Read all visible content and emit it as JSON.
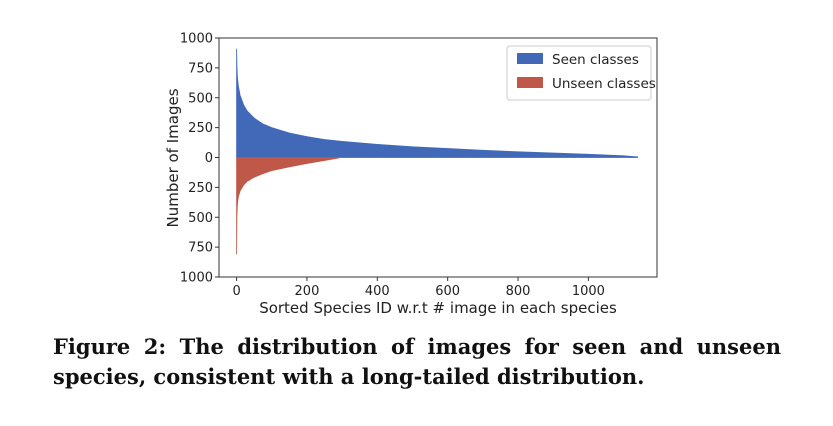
{
  "caption": {
    "text": "Figure 2: The distribution of images for seen and unseen species, consistent with a long-tailed distribution."
  },
  "chart_data": {
    "type": "bar",
    "title": "",
    "xlabel": "Sorted Species ID w.r.t # image in each species",
    "ylabel": "Number of Images",
    "xlim": [
      -50,
      1195
    ],
    "ylim": [
      -1000,
      1000
    ],
    "xticks": [
      0,
      200,
      400,
      600,
      800,
      1000
    ],
    "yticks": [
      1000,
      750,
      500,
      250,
      0,
      -250,
      -500,
      -750,
      -1000
    ],
    "ytick_labels": [
      "1000",
      "750",
      "500",
      "250",
      "0",
      "250",
      "500",
      "750",
      "1000"
    ],
    "legend_position": "top-right",
    "series": [
      {
        "name": "Seen classes",
        "color": "#4169b8",
        "direction": "up",
        "x": [
          0,
          1,
          2,
          3,
          5,
          10,
          20,
          30,
          50,
          75,
          100,
          150,
          200,
          250,
          300,
          400,
          500,
          600,
          700,
          800,
          900,
          1000,
          1100,
          1140
        ],
        "values": [
          910,
          760,
          690,
          650,
          600,
          520,
          440,
          390,
          330,
          280,
          250,
          205,
          175,
          150,
          135,
          110,
          90,
          75,
          60,
          48,
          37,
          27,
          14,
          5
        ]
      },
      {
        "name": "Unseen classes",
        "color": "#c0584a",
        "direction": "down",
        "x": [
          0,
          1,
          2,
          3,
          5,
          10,
          20,
          30,
          50,
          75,
          100,
          150,
          200,
          250,
          290
        ],
        "values": [
          810,
          480,
          410,
          370,
          330,
          280,
          230,
          200,
          165,
          135,
          110,
          78,
          50,
          25,
          5
        ]
      }
    ]
  }
}
